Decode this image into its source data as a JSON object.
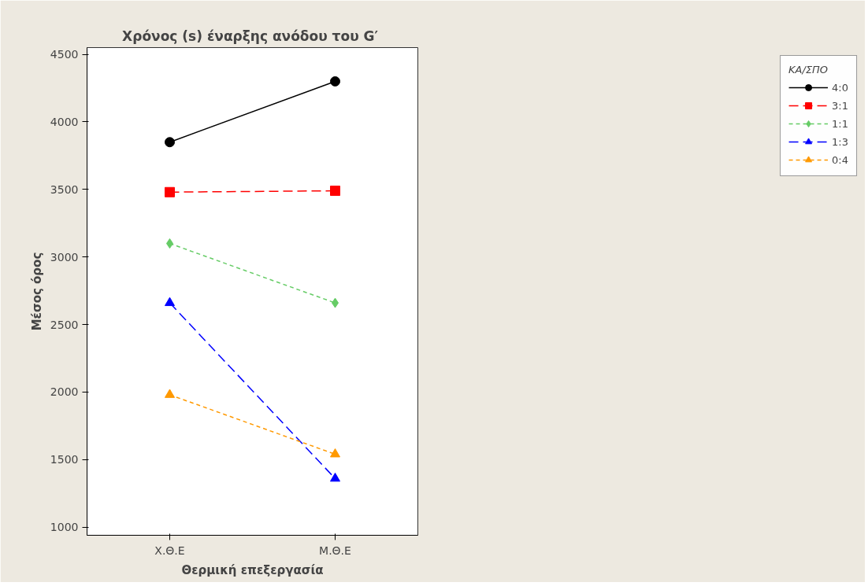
{
  "chart_data": {
    "type": "line",
    "title": "Χρόνος (s) έναρξης ανόδου του  G′",
    "xlabel": "Θερμική επεξεργασία",
    "ylabel": "Μέσος όρος",
    "legend_title": "ΚΑ/ΣΠΟ",
    "categories": [
      "Χ.Θ.Ε",
      "Μ.Θ.Ε"
    ],
    "series": [
      {
        "name": "4:0",
        "color": "#000000",
        "values": [
          3850,
          4300
        ],
        "marker": "circle",
        "line_style": "solid"
      },
      {
        "name": "3:1",
        "color": "#ff0000",
        "values": [
          3480,
          3490
        ],
        "marker": "square",
        "line_style": "dashed"
      },
      {
        "name": "1:1",
        "color": "#66cc66",
        "values": [
          3100,
          2660
        ],
        "marker": "diamond",
        "line_style": "dotted"
      },
      {
        "name": "1:3",
        "color": "#0000ff",
        "values": [
          2660,
          1360
        ],
        "marker": "triangle",
        "line_style": "dashed"
      },
      {
        "name": "0:4",
        "color": "#ff9900",
        "values": [
          1980,
          1540
        ],
        "marker": "triangle",
        "line_style": "dotted"
      }
    ],
    "ylim": [
      940,
      4550
    ],
    "yticks": [
      1000,
      1500,
      2000,
      2500,
      3000,
      3500,
      4000,
      4500
    ],
    "grid": false,
    "legend": "right"
  }
}
